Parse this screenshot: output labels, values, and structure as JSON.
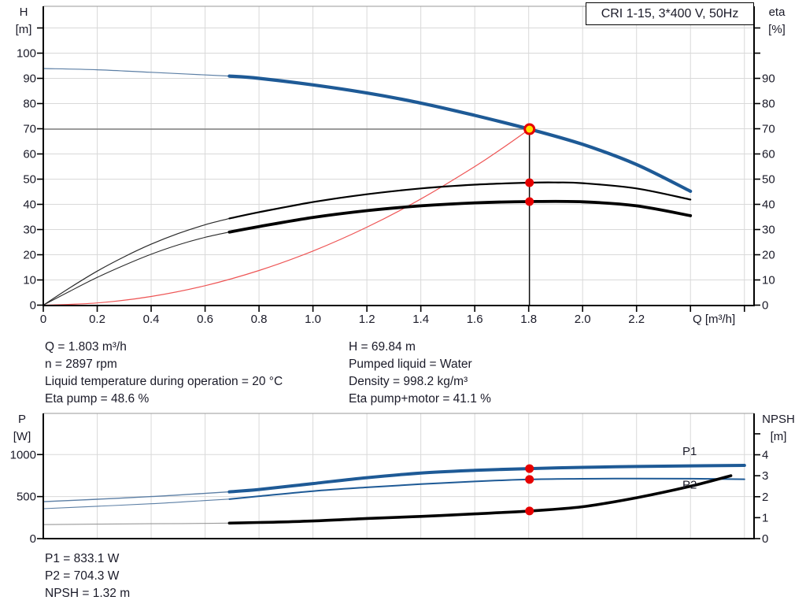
{
  "header": {
    "title": "CRI 1-15, 3*400 V, 50Hz"
  },
  "axis_titles": {
    "h_line1": "H",
    "h_line2": "[m]",
    "eta_line1": "eta",
    "eta_line2": "[%]",
    "p_line1": "P",
    "p_line2": "[W]",
    "npsh_line1": "NPSH",
    "npsh_line2": "[m]",
    "q_label": "Q [m³/h]"
  },
  "info_panel": {
    "left": [
      "Q = 1.803 m³/h",
      "n = 2897 rpm",
      "Liquid temperature during operation = 20 °C",
      "Eta pump = 48.6 %"
    ],
    "right": [
      "H = 69.84 m",
      "Pumped liquid = Water",
      "Density = 998.2 kg/m³",
      "Eta pump+motor = 41.1 %"
    ]
  },
  "results_panel": [
    "P1 = 833.1 W",
    "P2 = 704.3 W",
    "NPSH = 1.32 m"
  ],
  "colors": {
    "curve_blue": "#1e5a96",
    "thin_blue": "#5c7fa5",
    "curve_black": "#000000",
    "thin_dark": "#2a2a2a",
    "thin_gray": "#999999",
    "system_red": "#ee5555",
    "grid": "#d9d9d9",
    "top_border": "#999999",
    "duty_yellow": "#ffe100",
    "marker_red": "#e60000",
    "ref_gray": "#808080",
    "axis_black": "#000000",
    "label_blue": "#1e5a96"
  },
  "chart_data": [
    {
      "type": "line",
      "name": "qh-eta-chart",
      "title": "CRI 1-15, 3*400 V, 50Hz",
      "xlabel": "Q [m³/h]",
      "x_range": [
        0,
        2.633
      ],
      "x_ticks": [
        [
          0,
          "0"
        ],
        [
          0.2,
          "0.2"
        ],
        [
          0.4,
          "0.4"
        ],
        [
          0.6,
          "0.6"
        ],
        [
          0.8,
          "0.8"
        ],
        [
          1.0,
          "1.0"
        ],
        [
          1.2,
          "1.2"
        ],
        [
          1.4,
          "1.4"
        ],
        [
          1.6,
          "1.6"
        ],
        [
          1.8,
          "1.8"
        ],
        [
          2.0,
          "2.0"
        ],
        [
          2.2,
          "2.2"
        ],
        [
          2.4,
          ""
        ],
        [
          2.6,
          ""
        ]
      ],
      "y_left_label": "H [m]",
      "y_left_range": [
        0,
        118.6
      ],
      "y_left_ticks": [
        [
          0,
          "0"
        ],
        [
          10,
          "10"
        ],
        [
          20,
          "20"
        ],
        [
          30,
          "30"
        ],
        [
          40,
          "40"
        ],
        [
          50,
          "50"
        ],
        [
          60,
          "60"
        ],
        [
          70,
          "70"
        ],
        [
          80,
          "80"
        ],
        [
          90,
          "90"
        ],
        [
          100,
          "100"
        ],
        [
          110,
          ""
        ]
      ],
      "y_right_label": "eta [%]",
      "y_right_ticks": [
        [
          0,
          "0"
        ],
        [
          10,
          "10"
        ],
        [
          20,
          "20"
        ],
        [
          30,
          "30"
        ],
        [
          40,
          "40"
        ],
        [
          50,
          "50"
        ],
        [
          60,
          "60"
        ],
        [
          70,
          "70"
        ],
        [
          80,
          "80"
        ],
        [
          90,
          "90"
        ],
        [
          100,
          ""
        ],
        [
          110,
          ""
        ]
      ],
      "series": [
        {
          "name": "system-curve",
          "axis": "left",
          "split_at": null,
          "thick": {
            "color": "#ee5555",
            "width": 1.2
          },
          "points": [
            [
              0,
              0
            ],
            [
              0.2,
              0.86
            ],
            [
              0.4,
              3.44
            ],
            [
              0.6,
              7.73
            ],
            [
              0.8,
              13.75
            ],
            [
              1.0,
              21.48
            ],
            [
              1.2,
              30.94
            ],
            [
              1.4,
              42.11
            ],
            [
              1.6,
              55.0
            ],
            [
              1.7,
              62.1
            ],
            [
              1.803,
              69.84
            ]
          ]
        },
        {
          "name": "eta-pump-curve",
          "axis": "left",
          "split_at": 0.69,
          "thin": {
            "color": "#2a2a2a",
            "width": 1.2
          },
          "thick": {
            "color": "#000000",
            "width": 2.2
          },
          "points": [
            [
              0,
              0
            ],
            [
              0.1,
              7.0
            ],
            [
              0.2,
              13.5
            ],
            [
              0.3,
              19.2
            ],
            [
              0.4,
              24.2
            ],
            [
              0.5,
              28.4
            ],
            [
              0.6,
              31.9
            ],
            [
              0.69,
              34.4
            ],
            [
              0.8,
              36.9
            ],
            [
              1.0,
              40.9
            ],
            [
              1.2,
              44.0
            ],
            [
              1.4,
              46.3
            ],
            [
              1.6,
              47.8
            ],
            [
              1.803,
              48.6
            ],
            [
              1.9,
              48.7
            ],
            [
              2.0,
              48.4
            ],
            [
              2.2,
              46.3
            ],
            [
              2.4,
              41.9
            ]
          ]
        },
        {
          "name": "eta-pump-motor-curve",
          "axis": "left",
          "split_at": 0.69,
          "thin": {
            "color": "#2a2a2a",
            "width": 1.1
          },
          "thick": {
            "color": "#000000",
            "width": 3.8
          },
          "points": [
            [
              0,
              0
            ],
            [
              0.1,
              5.6
            ],
            [
              0.2,
              11.0
            ],
            [
              0.3,
              15.8
            ],
            [
              0.4,
              20.2
            ],
            [
              0.5,
              23.9
            ],
            [
              0.6,
              26.9
            ],
            [
              0.69,
              29.0
            ],
            [
              0.8,
              31.2
            ],
            [
              1.0,
              34.8
            ],
            [
              1.2,
              37.5
            ],
            [
              1.4,
              39.4
            ],
            [
              1.6,
              40.6
            ],
            [
              1.803,
              41.1
            ],
            [
              2.0,
              41.0
            ],
            [
              2.2,
              39.4
            ],
            [
              2.4,
              35.5
            ]
          ]
        },
        {
          "name": "head-curve",
          "axis": "left",
          "split_at": 0.69,
          "thin": {
            "color": "#5c7fa5",
            "width": 1.2
          },
          "thick": {
            "color": "#1e5a96",
            "width": 4.2
          },
          "points": [
            [
              0,
              93.9
            ],
            [
              0.2,
              93.4
            ],
            [
              0.4,
              92.4
            ],
            [
              0.69,
              90.9
            ],
            [
              0.8,
              90.0
            ],
            [
              1.0,
              87.4
            ],
            [
              1.2,
              84.2
            ],
            [
              1.4,
              80.2
            ],
            [
              1.6,
              75.3
            ],
            [
              1.803,
              69.84
            ],
            [
              2.0,
              63.8
            ],
            [
              2.2,
              55.8
            ],
            [
              2.4,
              45.2
            ]
          ]
        }
      ],
      "annotations": {
        "h_line": {
          "value": 69.84,
          "from_q": 0,
          "to_q": 1.803
        },
        "v_line": {
          "q": 1.803,
          "from": 0,
          "to": 69.84
        },
        "duty_marker": {
          "q": 1.803,
          "value": 69.84
        },
        "dots": [
          {
            "q": 1.803,
            "value": 48.6
          },
          {
            "q": 1.803,
            "value": 41.1
          }
        ]
      }
    },
    {
      "type": "line",
      "name": "power-npsh-chart",
      "xlabel": "",
      "x_range": [
        0,
        2.633
      ],
      "x_ticks": [
        [
          0.2,
          ""
        ],
        [
          0.4,
          ""
        ],
        [
          0.6,
          ""
        ],
        [
          0.8,
          ""
        ],
        [
          1.0,
          ""
        ],
        [
          1.2,
          ""
        ],
        [
          1.4,
          ""
        ],
        [
          1.6,
          ""
        ],
        [
          1.8,
          ""
        ],
        [
          2.0,
          ""
        ],
        [
          2.2,
          ""
        ],
        [
          2.4,
          ""
        ],
        [
          2.6,
          ""
        ]
      ],
      "y_left_label": "P [W]",
      "y_left_range": [
        0,
        1489
      ],
      "y_left_ticks": [
        [
          0,
          "0"
        ],
        [
          500,
          "500"
        ],
        [
          1000,
          "1000"
        ]
      ],
      "y_right_label": "NPSH [m]",
      "y_right_range": [
        0,
        5.97
      ],
      "y_right_ticks": [
        [
          0,
          "0"
        ],
        [
          1,
          "1"
        ],
        [
          2,
          "2"
        ],
        [
          3,
          "3"
        ],
        [
          4,
          "4"
        ],
        [
          5,
          ""
        ]
      ],
      "series": [
        {
          "name": "p1-curve",
          "axis": "left",
          "split_at": 0.69,
          "thin": {
            "color": "#5c7fa5",
            "width": 1.4
          },
          "thick": {
            "color": "#1e5a96",
            "width": 4.0
          },
          "points": [
            [
              0,
              440
            ],
            [
              0.2,
              468
            ],
            [
              0.4,
              500
            ],
            [
              0.55,
              528
            ],
            [
              0.69,
              556
            ],
            [
              0.8,
              585
            ],
            [
              1.0,
              655
            ],
            [
              1.2,
              725
            ],
            [
              1.4,
              780
            ],
            [
              1.6,
              812
            ],
            [
              1.803,
              833.1
            ],
            [
              2.0,
              848
            ],
            [
              2.2,
              858
            ],
            [
              2.4,
              866
            ],
            [
              2.6,
              871
            ]
          ]
        },
        {
          "name": "p2-curve",
          "axis": "left",
          "split_at": 0.69,
          "thin": {
            "color": "#5c7fa5",
            "width": 1.1
          },
          "thick": {
            "color": "#1e5a96",
            "width": 2.0
          },
          "points": [
            [
              0,
              356
            ],
            [
              0.2,
              385
            ],
            [
              0.4,
              415
            ],
            [
              0.55,
              443
            ],
            [
              0.69,
              470
            ],
            [
              0.8,
              505
            ],
            [
              1.0,
              565
            ],
            [
              1.2,
              610
            ],
            [
              1.4,
              648
            ],
            [
              1.6,
              680
            ],
            [
              1.803,
              704.3
            ],
            [
              2.0,
              712
            ],
            [
              2.2,
              715
            ],
            [
              2.4,
              713
            ],
            [
              2.6,
              706
            ]
          ]
        },
        {
          "name": "npsh-curve",
          "axis": "right",
          "split_at": 0.69,
          "thin": {
            "color": "#999999",
            "width": 1.1
          },
          "thick": {
            "color": "#000000",
            "width": 3.6
          },
          "points": [
            [
              0,
              0.67
            ],
            [
              0.2,
              0.69
            ],
            [
              0.4,
              0.71
            ],
            [
              0.55,
              0.72
            ],
            [
              0.69,
              0.74
            ],
            [
              0.8,
              0.77
            ],
            [
              1.0,
              0.84
            ],
            [
              1.2,
              0.96
            ],
            [
              1.4,
              1.06
            ],
            [
              1.6,
              1.18
            ],
            [
              1.803,
              1.32
            ],
            [
              2.0,
              1.52
            ],
            [
              2.2,
              1.95
            ],
            [
              2.4,
              2.5
            ],
            [
              2.55,
              3.0
            ]
          ]
        }
      ],
      "curve_labels": [
        {
          "text": "P1",
          "q": 2.37,
          "value": 1040,
          "axis": "left"
        },
        {
          "text": "P2",
          "q": 2.37,
          "value": 640,
          "axis": "left"
        }
      ],
      "annotations": {
        "dots": [
          {
            "q": 1.803,
            "value": 833.1,
            "axis": "left"
          },
          {
            "q": 1.803,
            "value": 704.3,
            "axis": "left"
          },
          {
            "q": 1.803,
            "value": 1.32,
            "axis": "right"
          }
        ]
      }
    }
  ]
}
